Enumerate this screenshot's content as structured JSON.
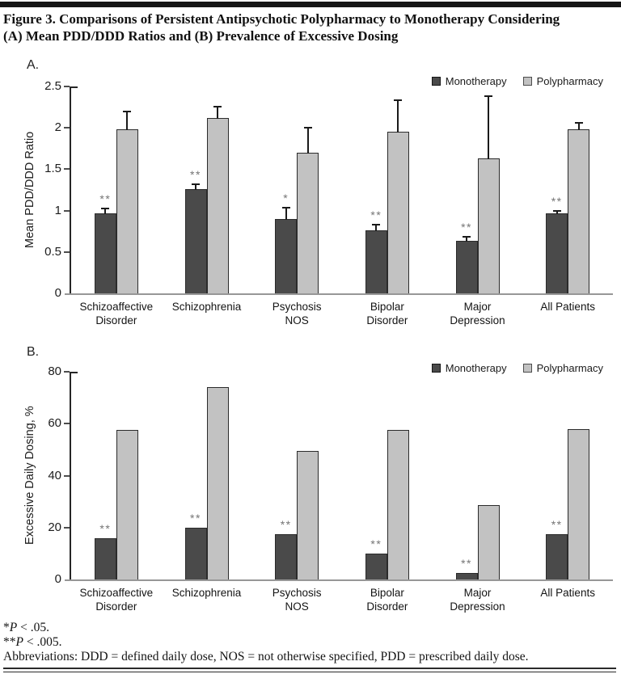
{
  "title": {
    "line1": "Figure 3. Comparisons of Persistent Antipsychotic Polypharmacy to Monotherapy Considering",
    "line2": "(A) Mean PDD/DDD Ratios and (B) Prevalence of Excessive Dosing"
  },
  "legend": {
    "monotherapy": "Monotherapy",
    "polypharmacy": "Polypharmacy"
  },
  "colors": {
    "monotherapy": "#4a4a4a",
    "polypharmacy": "#c2c2c2",
    "bar_border": "#2b2b2b",
    "error_bar": "#1a1a1a",
    "axis": "#262626",
    "baseline": "#979797",
    "significance": "#757575",
    "top_rule": "#161616"
  },
  "footnotes": [
    {
      "star": "*",
      "p": "P",
      "rest": " < .05."
    },
    {
      "star": "**",
      "p": "P",
      "rest": " < .005."
    }
  ],
  "abbreviations": "Abbreviations: DDD = defined daily dose, NOS = not otherwise specified, PDD = prescribed daily dose.",
  "chart_data": [
    {
      "id": "chartA",
      "type": "bar",
      "panel_label": "A.",
      "ylabel": "Mean PDD/DDD Ratio",
      "ylim": [
        0,
        2.5
      ],
      "grid": false,
      "legend_position": "top-right",
      "yticks": [
        {
          "v": 0,
          "label": "0"
        },
        {
          "v": 0.5,
          "label": "0.5"
        },
        {
          "v": 1,
          "label": "1"
        },
        {
          "v": 1.5,
          "label": "1.5"
        },
        {
          "v": 2,
          "label": "2"
        },
        {
          "v": 2.5,
          "label": "2.5"
        }
      ],
      "categories": [
        [
          "Schizoaffective",
          "Disorder"
        ],
        [
          "Schizophrenia"
        ],
        [
          "Psychosis",
          "NOS"
        ],
        [
          "Bipolar",
          "Disorder"
        ],
        [
          "Major",
          "Depression"
        ],
        [
          "All Patients"
        ]
      ],
      "series": [
        {
          "name": "Monotherapy",
          "values": [
            0.97,
            1.26,
            0.9,
            0.76,
            0.63,
            0.97
          ],
          "errors": [
            0.08,
            0.08,
            0.16,
            0.09,
            0.07,
            0.05
          ]
        },
        {
          "name": "Polypharmacy",
          "values": [
            1.98,
            2.12,
            1.7,
            1.95,
            1.63,
            1.98
          ],
          "errors": [
            0.23,
            0.16,
            0.32,
            0.4,
            0.77,
            0.1
          ]
        }
      ],
      "significance": [
        "**",
        "**",
        "*",
        "**",
        "**",
        "**"
      ]
    },
    {
      "id": "chartB",
      "type": "bar",
      "panel_label": "B.",
      "ylabel": "Excessive Daily Dosing, %",
      "ylim": [
        0,
        80
      ],
      "grid": false,
      "legend_position": "top-right",
      "yticks": [
        {
          "v": 0,
          "label": "0"
        },
        {
          "v": 20,
          "label": "20"
        },
        {
          "v": 40,
          "label": "40"
        },
        {
          "v": 60,
          "label": "60"
        },
        {
          "v": 80,
          "label": "80"
        }
      ],
      "categories": [
        [
          "Schizoaffective",
          "Disorder"
        ],
        [
          "Schizophrenia"
        ],
        [
          "Psychosis",
          "NOS"
        ],
        [
          "Bipolar",
          "Disorder"
        ],
        [
          "Major",
          "Depression"
        ],
        [
          "All Patients"
        ]
      ],
      "series": [
        {
          "name": "Monotherapy",
          "values": [
            16,
            20,
            17.5,
            10,
            2.5,
            17.5
          ]
        },
        {
          "name": "Polypharmacy",
          "values": [
            57.5,
            74,
            49.5,
            57.5,
            28.5,
            58
          ]
        }
      ],
      "significance": [
        "**",
        "**",
        "**",
        "**",
        "**",
        "**"
      ]
    }
  ]
}
